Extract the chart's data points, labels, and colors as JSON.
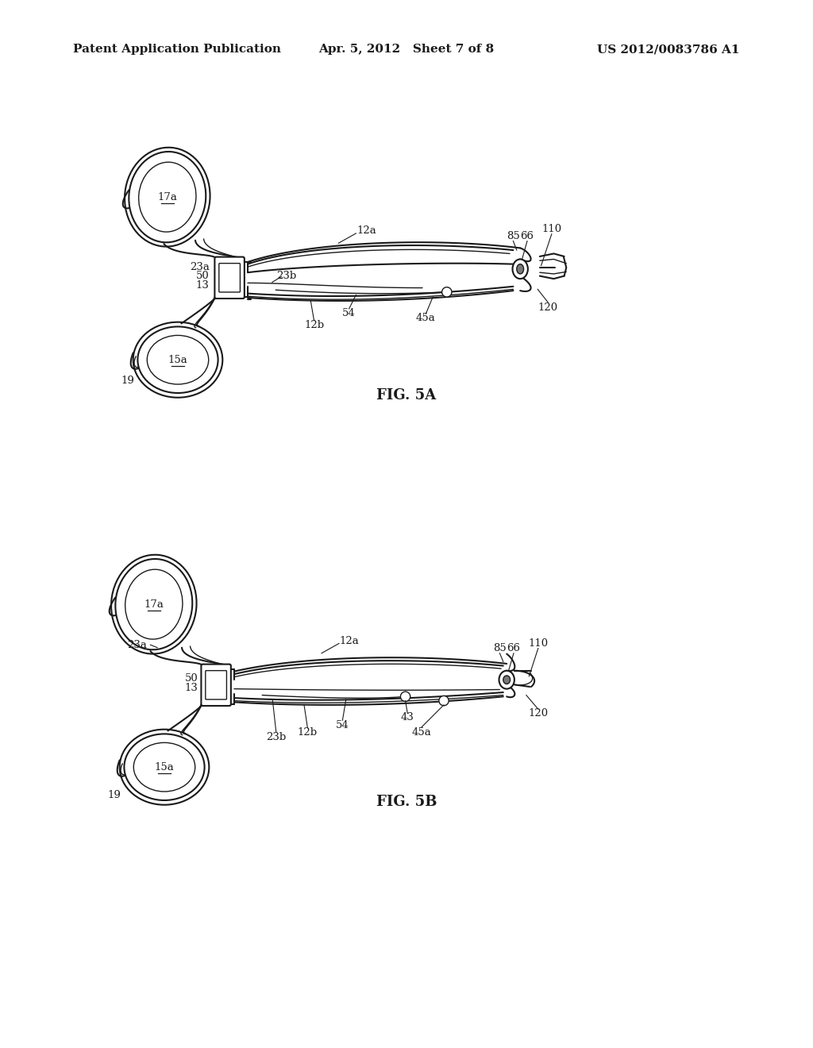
{
  "background_color": "#ffffff",
  "header_left": "Patent Application Publication",
  "header_center": "Apr. 5, 2012   Sheet 7 of 8",
  "header_right": "US 2012/0083786 A1",
  "fig5a_label": "FIG. 5A",
  "fig5b_label": "FIG. 5B",
  "line_color": "#1a1a1a",
  "header_fontsize": 11,
  "fig_label_fontsize": 13,
  "annotation_fontsize": 9.5
}
